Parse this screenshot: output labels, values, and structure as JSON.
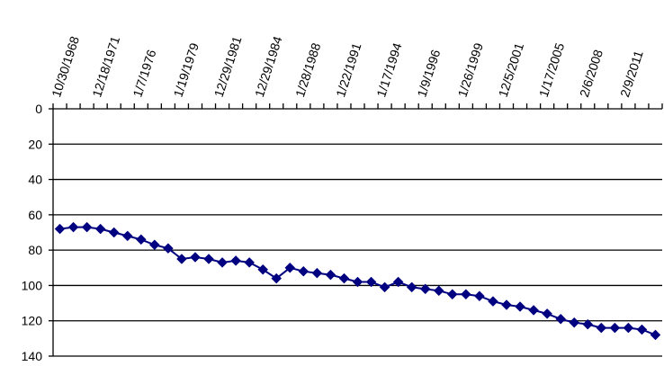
{
  "chart_data": {
    "type": "line",
    "title": "",
    "xlabel": "",
    "ylabel": "",
    "y_axis_inverted": true,
    "ylim": [
      0,
      140
    ],
    "y_ticks": [
      0,
      20,
      40,
      60,
      80,
      100,
      120,
      140
    ],
    "grid": "horizontal",
    "legend": "none",
    "x_tick_labels": [
      "10/30/1968",
      "12/18/1971",
      "1/7/1976",
      "1/19/1979",
      "12/29/1981",
      "12/29/1984",
      "1/28/1988",
      "1/22/1991",
      "1/17/1994",
      "1/9/1996",
      "1/26/1999",
      "12/5/2001",
      "1/17/2005",
      "2/6/2008",
      "2/9/2011"
    ],
    "x_tick_every": 3,
    "marker": "diamond",
    "line_color": "#000080",
    "marker_color": "#000080",
    "series": [
      {
        "values": [
          68,
          67,
          67,
          68,
          70,
          72,
          74,
          77,
          79,
          85,
          84,
          85,
          87,
          86,
          87,
          91,
          96,
          90,
          92,
          93,
          94,
          96,
          98,
          98,
          101,
          98,
          101,
          102,
          103,
          105,
          105,
          106,
          109,
          111,
          112,
          114,
          116,
          119,
          121,
          122,
          124,
          124,
          124,
          125,
          128
        ]
      }
    ]
  }
}
